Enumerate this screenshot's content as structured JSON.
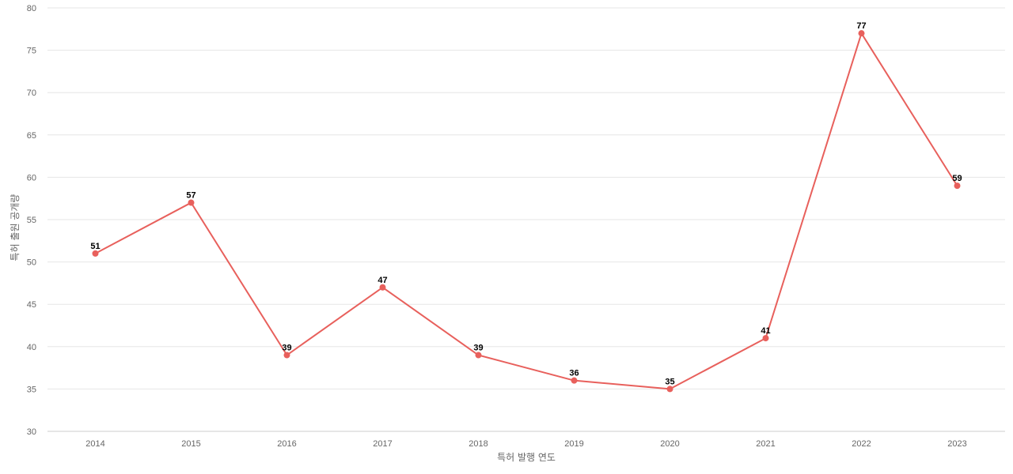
{
  "chart_data": {
    "type": "line",
    "title": "",
    "xlabel": "특허 발행 연도",
    "ylabel": "특허 출원 공개량",
    "categories": [
      "2014",
      "2015",
      "2016",
      "2017",
      "2018",
      "2019",
      "2020",
      "2021",
      "2022",
      "2023"
    ],
    "series": [
      {
        "values": [
          51,
          57,
          39,
          47,
          39,
          36,
          35,
          41,
          77,
          59
        ],
        "color": "#e8605c"
      }
    ],
    "ylim": [
      30,
      80
    ],
    "yticks": [
      30,
      35,
      40,
      45,
      50,
      55,
      60,
      65,
      70,
      75,
      80
    ],
    "grid": true,
    "legend": "none",
    "data_labels": true
  }
}
